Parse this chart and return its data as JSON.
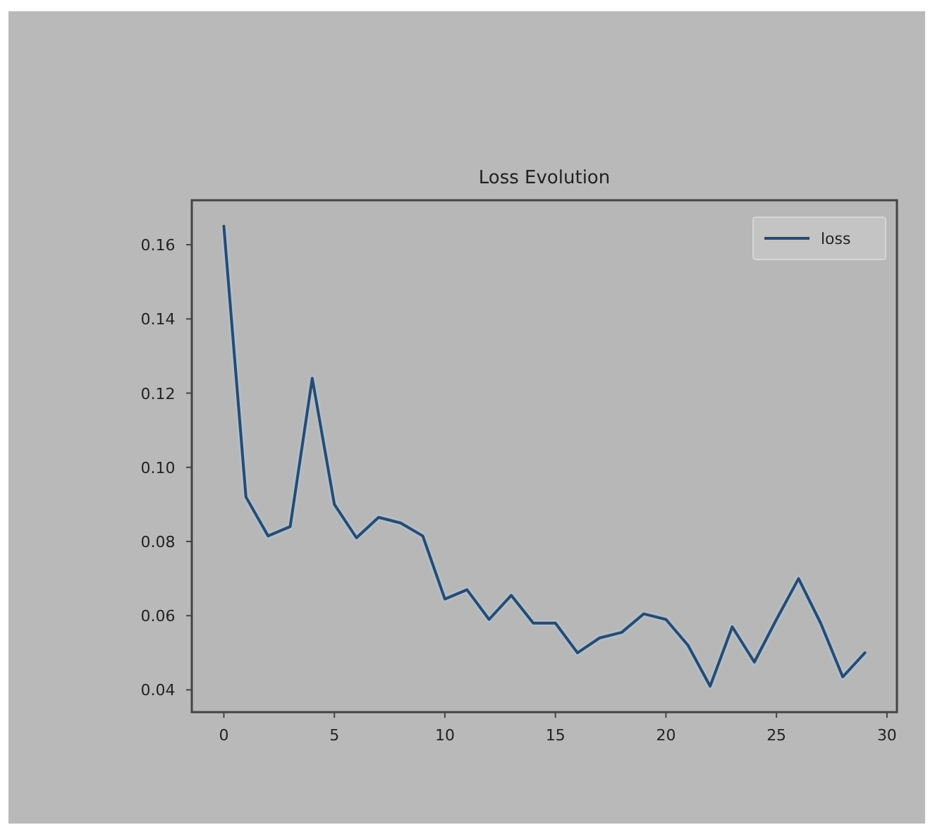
{
  "chart_data": {
    "type": "line",
    "title": "Loss Evolution",
    "x": [
      0,
      1,
      2,
      3,
      4,
      5,
      6,
      7,
      8,
      9,
      10,
      11,
      12,
      13,
      14,
      15,
      16,
      17,
      18,
      19,
      20,
      21,
      22,
      23,
      24,
      25,
      26,
      27,
      28,
      29
    ],
    "series": [
      {
        "name": "loss",
        "color": "#2c4a6b",
        "values": [
          0.165,
          0.092,
          0.0815,
          0.084,
          0.124,
          0.09,
          0.081,
          0.0865,
          0.085,
          0.0815,
          0.0645,
          0.067,
          0.059,
          0.0655,
          0.058,
          0.058,
          0.05,
          0.054,
          0.0555,
          0.0605,
          0.059,
          0.052,
          0.041,
          0.057,
          0.0475,
          0.059,
          0.07,
          0.058,
          0.0435,
          0.05
        ]
      }
    ],
    "xlim": [
      -1.45,
      30.45
    ],
    "xticks": [
      0,
      5,
      10,
      15,
      20,
      25,
      30
    ],
    "ylim": [
      0.034,
      0.172
    ],
    "yticks": [
      0.04,
      0.06,
      0.08,
      {
        "value": 0.1,
        "label": "0.10"
      },
      0.12,
      0.14,
      0.16
    ],
    "grid": false,
    "legend": "top right",
    "line_style": "solid",
    "marker": "none"
  }
}
